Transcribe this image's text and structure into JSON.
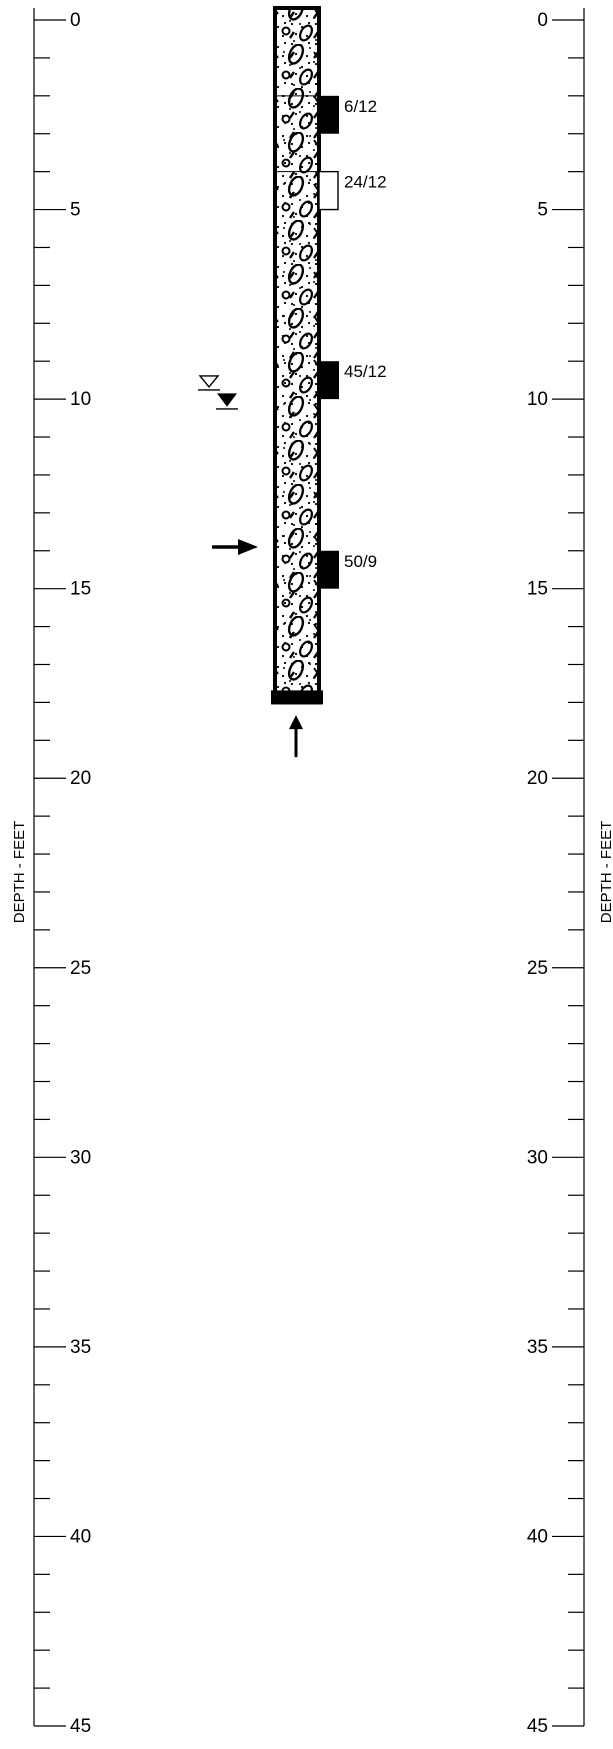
{
  "left_scale": {
    "axis_title": "DEPTH - FEET",
    "labels": [
      "0",
      "5",
      "10",
      "15",
      "20",
      "25",
      "30",
      "35",
      "40",
      "45"
    ],
    "max_depth": 45,
    "tick_interval": 1
  },
  "right_scale": {
    "axis_title": "DEPTH - FEET",
    "labels": [
      "0",
      "5",
      "10",
      "15",
      "20",
      "25",
      "30",
      "35",
      "40",
      "45"
    ]
  },
  "boring": {
    "bottom_depth": 18,
    "pattern": "sandy gravel with cobbles",
    "pattern_break_depth": 2,
    "samples": [
      {
        "top": 2.0,
        "bottom": 3.0,
        "type": "solid",
        "label": "6/12"
      },
      {
        "top": 4.0,
        "bottom": 5.0,
        "type": "open",
        "label": "24/12"
      },
      {
        "top": 9.0,
        "bottom": 10.0,
        "type": "solid",
        "label": "45/12"
      },
      {
        "top": 14.0,
        "bottom": 15.0,
        "type": "solid",
        "label": "50/9"
      }
    ],
    "water_levels": [
      {
        "depth": 9.6,
        "symbol": "water-level-open-icon"
      },
      {
        "depth": 10.1,
        "symbol": "water-level-filled-icon"
      }
    ],
    "contact_arrow_depth": 13.9,
    "refusal_arrow_depth": 18.6
  }
}
